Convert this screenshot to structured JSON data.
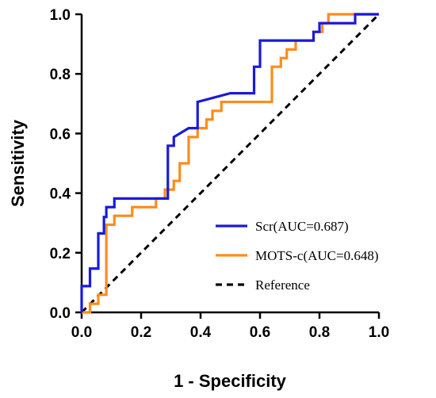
{
  "chart_data": {
    "type": "line",
    "title": "",
    "xlabel": "1 - Specificity",
    "ylabel": "Sensitivity",
    "xlim": [
      0,
      1
    ],
    "ylim": [
      0,
      1
    ],
    "xticks": [
      "0.0",
      "0.2",
      "0.4",
      "0.6",
      "0.8",
      "1.0"
    ],
    "yticks": [
      "0.0",
      "0.2",
      "0.4",
      "0.6",
      "0.8",
      "1.0"
    ],
    "grid": false,
    "legend_position": "bottom-right",
    "series": [
      {
        "name": "Scr(AUC=0.687)",
        "color": "#1a1adc",
        "style": "solid",
        "x": [
          0,
          0,
          0.028,
          0.028,
          0.056,
          0.056,
          0.075,
          0.075,
          0.083,
          0.083,
          0.11,
          0.11,
          0.22,
          0.29,
          0.29,
          0.31,
          0.31,
          0.36,
          0.39,
          0.39,
          0.5,
          0.58,
          0.58,
          0.6,
          0.6,
          0.78,
          0.78,
          0.8,
          0.8,
          0.92,
          0.92,
          1.0
        ],
        "y": [
          0,
          0.088,
          0.088,
          0.147,
          0.147,
          0.265,
          0.265,
          0.32,
          0.32,
          0.353,
          0.353,
          0.382,
          0.382,
          0.382,
          0.559,
          0.559,
          0.588,
          0.618,
          0.618,
          0.706,
          0.735,
          0.735,
          0.824,
          0.824,
          0.912,
          0.912,
          0.941,
          0.941,
          0.97,
          0.97,
          1.0,
          1.0
        ]
      },
      {
        "name": "MOTS-c(AUC=0.648)",
        "color": "#ff8c1a",
        "style": "solid",
        "x": [
          0,
          0.028,
          0.028,
          0.056,
          0.056,
          0.083,
          0.083,
          0.11,
          0.11,
          0.14,
          0.14,
          0.17,
          0.17,
          0.25,
          0.25,
          0.28,
          0.28,
          0.31,
          0.31,
          0.33,
          0.33,
          0.36,
          0.36,
          0.39,
          0.39,
          0.42,
          0.42,
          0.44,
          0.44,
          0.47,
          0.47,
          0.61,
          0.64,
          0.64,
          0.67,
          0.67,
          0.69,
          0.69,
          0.72,
          0.72,
          0.78,
          0.78,
          0.81,
          0.81,
          0.83,
          0.83,
          0.92,
          0.92,
          1.0
        ],
        "y": [
          0,
          0,
          0.029,
          0.029,
          0.059,
          0.059,
          0.294,
          0.294,
          0.324,
          0.324,
          0.324,
          0.324,
          0.353,
          0.353,
          0.382,
          0.382,
          0.412,
          0.412,
          0.441,
          0.441,
          0.5,
          0.5,
          0.588,
          0.588,
          0.618,
          0.618,
          0.647,
          0.647,
          0.676,
          0.676,
          0.706,
          0.706,
          0.706,
          0.824,
          0.824,
          0.853,
          0.853,
          0.882,
          0.882,
          0.912,
          0.912,
          0.941,
          0.941,
          0.97,
          0.97,
          1.0,
          1.0,
          1.0,
          1.0
        ]
      },
      {
        "name": "Reference",
        "color": "#000000",
        "style": "dashed",
        "x": [
          0,
          1
        ],
        "y": [
          0,
          1
        ]
      }
    ]
  }
}
